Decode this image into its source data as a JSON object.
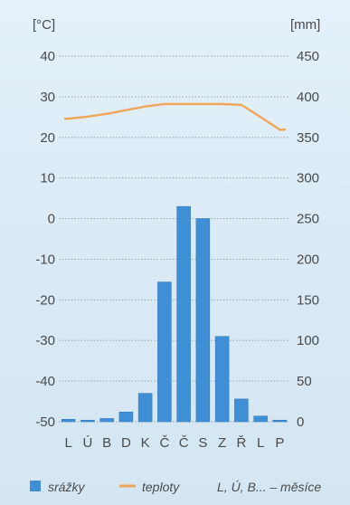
{
  "chart_data": {
    "type": "bar+line",
    "units": {
      "left": "[°C]",
      "right": "[mm]"
    },
    "left_axis": {
      "ticks": [
        40,
        30,
        20,
        10,
        0,
        -10,
        -20,
        -30,
        -40,
        -50
      ],
      "ylim": [
        -50,
        40
      ]
    },
    "right_axis": {
      "ticks": [
        450,
        400,
        350,
        300,
        250,
        200,
        150,
        100,
        50,
        0
      ],
      "ylim": [
        0,
        450
      ]
    },
    "categories": [
      "L",
      "Ú",
      "B",
      "D",
      "K",
      "Č",
      "Č",
      "S",
      "Z",
      "Ř",
      "L",
      "P"
    ],
    "series": [
      {
        "name": "srážky",
        "type": "bar",
        "axis": "right",
        "color": "#3f8fd6",
        "values": [
          3,
          2,
          4,
          12,
          35,
          172,
          265,
          250,
          105,
          28,
          7,
          2
        ]
      },
      {
        "name": "teploty",
        "type": "line",
        "axis": "left",
        "color": "#f0a65a",
        "values": [
          24.6,
          25.1,
          25.8,
          26.7,
          27.6,
          28.2,
          28.2,
          28.2,
          28.2,
          28.0,
          25.0,
          21.9
        ]
      }
    ],
    "grid": "horizontal dashed",
    "legend": {
      "placement": "bottom",
      "items": [
        {
          "label": "srážky",
          "symbol": "square",
          "color": "#3f8fd6"
        },
        {
          "label": "teploty",
          "symbol": "line",
          "color": "#f0a65a"
        }
      ],
      "note": "L, Ú, B... – měsíce"
    }
  }
}
